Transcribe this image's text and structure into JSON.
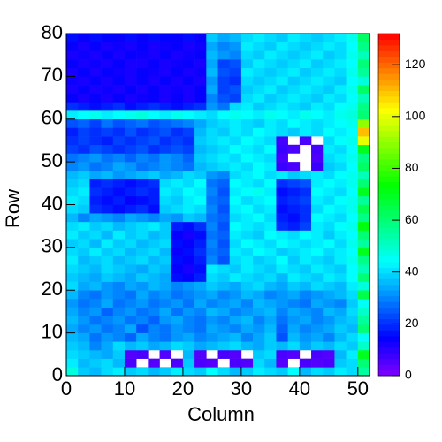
{
  "chart_data": {
    "type": "heatmap",
    "x_label": "Column",
    "y_label": "Row",
    "xlim": [
      0,
      52
    ],
    "ylim": [
      0,
      80
    ],
    "zlim": [
      0,
      132
    ],
    "xticks": [
      0,
      10,
      20,
      30,
      40,
      50
    ],
    "yticks": [
      0,
      10,
      20,
      30,
      40,
      50,
      60,
      70,
      80
    ],
    "zticks": [
      0,
      20,
      40,
      60,
      80,
      100,
      120
    ],
    "xbins": [
      0,
      2,
      4,
      6,
      8,
      10,
      12,
      14,
      16,
      18,
      20,
      22,
      24,
      26,
      28,
      30,
      32,
      34,
      36,
      38,
      40,
      42,
      44,
      46,
      48,
      50,
      52
    ],
    "ybins": [
      0,
      2,
      4,
      6,
      8,
      10,
      12,
      14,
      16,
      18,
      20,
      22,
      24,
      26,
      28,
      30,
      32,
      34,
      36,
      38,
      40,
      42,
      44,
      46,
      48,
      50,
      52,
      54,
      56,
      58,
      60,
      62,
      64,
      66,
      68,
      70,
      72,
      74,
      76,
      78,
      80
    ],
    "values": [
      [
        48,
        38,
        36,
        40,
        42,
        38,
        40,
        36,
        38,
        42,
        40,
        38,
        44,
        40,
        36,
        38,
        42,
        40,
        38,
        44,
        36,
        40,
        38,
        42,
        40,
        55
      ],
      [
        42,
        36,
        38,
        40,
        36,
        6,
        null,
        5,
        null,
        6,
        38,
        6,
        5,
        null,
        6,
        5,
        40,
        36,
        5,
        null,
        6,
        5,
        6,
        38,
        40,
        60
      ],
      [
        40,
        38,
        36,
        34,
        38,
        5,
        6,
        null,
        5,
        null,
        36,
        5,
        null,
        6,
        5,
        null,
        38,
        40,
        6,
        5,
        null,
        6,
        5,
        36,
        42,
        70
      ],
      [
        38,
        36,
        30,
        34,
        40,
        36,
        38,
        34,
        36,
        40,
        38,
        34,
        36,
        38,
        40,
        36,
        34,
        38,
        36,
        40,
        34,
        38,
        36,
        40,
        38,
        50
      ],
      [
        36,
        34,
        28,
        32,
        30,
        26,
        34,
        30,
        28,
        32,
        34,
        30,
        32,
        34,
        36,
        30,
        34,
        38,
        24,
        36,
        32,
        34,
        30,
        36,
        40,
        45
      ],
      [
        34,
        30,
        32,
        28,
        30,
        34,
        24,
        30,
        28,
        32,
        30,
        28,
        34,
        32,
        30,
        34,
        32,
        36,
        26,
        34,
        30,
        32,
        34,
        38,
        36,
        60
      ],
      [
        36,
        32,
        28,
        30,
        32,
        28,
        30,
        26,
        32,
        34,
        30,
        28,
        32,
        30,
        34,
        36,
        30,
        34,
        28,
        32,
        34,
        30,
        32,
        36,
        38,
        55
      ],
      [
        34,
        30,
        32,
        26,
        30,
        32,
        28,
        30,
        34,
        28,
        32,
        30,
        36,
        34,
        30,
        32,
        34,
        36,
        30,
        34,
        32,
        30,
        36,
        34,
        40,
        50
      ],
      [
        32,
        28,
        30,
        34,
        28,
        30,
        32,
        28,
        30,
        32,
        28,
        34,
        30,
        32,
        34,
        30,
        36,
        34,
        32,
        30,
        28,
        34,
        32,
        30,
        38,
        45
      ],
      [
        36,
        30,
        28,
        32,
        30,
        28,
        34,
        30,
        32,
        28,
        30,
        32,
        34,
        30,
        32,
        36,
        34,
        30,
        32,
        34,
        30,
        32,
        34,
        36,
        40,
        65
      ],
      [
        40,
        34,
        36,
        32,
        30,
        34,
        32,
        36,
        34,
        30,
        32,
        34,
        38,
        36,
        34,
        38,
        40,
        36,
        34,
        38,
        36,
        40,
        38,
        36,
        42,
        48
      ],
      [
        38,
        36,
        34,
        38,
        36,
        34,
        38,
        36,
        34,
        16,
        14,
        18,
        40,
        38,
        42,
        40,
        38,
        40,
        36,
        42,
        40,
        38,
        42,
        40,
        44,
        60
      ],
      [
        40,
        38,
        36,
        40,
        38,
        36,
        34,
        38,
        36,
        14,
        12,
        16,
        42,
        40,
        38,
        42,
        40,
        38,
        42,
        40,
        38,
        42,
        40,
        38,
        44,
        52
      ],
      [
        42,
        36,
        38,
        40,
        36,
        38,
        40,
        36,
        38,
        16,
        14,
        18,
        30,
        24,
        40,
        42,
        38,
        40,
        44,
        38,
        42,
        40,
        38,
        42,
        46,
        58
      ],
      [
        40,
        38,
        42,
        38,
        40,
        36,
        38,
        40,
        36,
        14,
        16,
        20,
        28,
        26,
        42,
        40,
        44,
        42,
        38,
        40,
        42,
        44,
        40,
        42,
        44,
        70
      ],
      [
        38,
        40,
        36,
        42,
        38,
        40,
        36,
        38,
        40,
        16,
        14,
        18,
        30,
        24,
        40,
        44,
        42,
        40,
        44,
        42,
        40,
        42,
        44,
        40,
        46,
        55
      ],
      [
        42,
        38,
        40,
        36,
        42,
        38,
        40,
        36,
        38,
        14,
        12,
        16,
        28,
        26,
        42,
        40,
        38,
        44,
        42,
        40,
        44,
        42,
        38,
        42,
        44,
        60
      ],
      [
        40,
        42,
        38,
        40,
        36,
        38,
        40,
        42,
        38,
        18,
        16,
        20,
        30,
        24,
        44,
        42,
        40,
        42,
        20,
        18,
        22,
        42,
        40,
        44,
        46,
        72
      ],
      [
        36,
        30,
        34,
        32,
        30,
        34,
        32,
        30,
        34,
        32,
        38,
        36,
        28,
        26,
        40,
        42,
        44,
        40,
        18,
        16,
        20,
        44,
        42,
        40,
        44,
        58
      ],
      [
        40,
        38,
        20,
        18,
        16,
        18,
        20,
        16,
        38,
        40,
        42,
        40,
        30,
        24,
        42,
        44,
        40,
        42,
        16,
        18,
        20,
        40,
        44,
        42,
        46,
        64
      ],
      [
        42,
        40,
        18,
        16,
        18,
        14,
        16,
        18,
        40,
        38,
        42,
        44,
        28,
        26,
        44,
        40,
        42,
        44,
        18,
        20,
        22,
        42,
        40,
        44,
        46,
        56
      ],
      [
        40,
        42,
        20,
        18,
        16,
        18,
        20,
        18,
        42,
        40,
        44,
        42,
        30,
        24,
        42,
        44,
        46,
        42,
        16,
        18,
        20,
        44,
        42,
        40,
        44,
        70
      ],
      [
        38,
        40,
        18,
        20,
        18,
        16,
        18,
        20,
        40,
        42,
        40,
        44,
        28,
        26,
        44,
        42,
        40,
        44,
        20,
        22,
        24,
        42,
        44,
        42,
        46,
        60
      ],
      [
        36,
        38,
        34,
        36,
        32,
        34,
        36,
        38,
        34,
        36,
        40,
        38,
        32,
        30,
        40,
        42,
        44,
        40,
        42,
        38,
        40,
        42,
        40,
        44,
        46,
        52
      ],
      [
        30,
        32,
        28,
        30,
        34,
        32,
        28,
        30,
        32,
        30,
        28,
        36,
        38,
        40,
        42,
        40,
        44,
        42,
        8,
        6,
        null,
        8,
        38,
        40,
        44,
        62
      ],
      [
        28,
        30,
        32,
        28,
        30,
        26,
        30,
        28,
        32,
        30,
        26,
        38,
        40,
        42,
        40,
        44,
        42,
        40,
        6,
        null,
        null,
        6,
        40,
        42,
        46,
        58
      ],
      [
        22,
        20,
        24,
        22,
        20,
        22,
        24,
        20,
        22,
        24,
        22,
        36,
        38,
        40,
        44,
        42,
        40,
        44,
        8,
        6,
        null,
        7,
        42,
        40,
        44,
        70
      ],
      [
        20,
        22,
        20,
        18,
        22,
        20,
        22,
        24,
        20,
        22,
        20,
        38,
        40,
        42,
        40,
        44,
        42,
        40,
        7,
        null,
        6,
        null,
        40,
        44,
        46,
        100
      ],
      [
        18,
        22,
        20,
        22,
        20,
        24,
        20,
        22,
        24,
        20,
        22,
        36,
        40,
        38,
        42,
        40,
        44,
        42,
        40,
        38,
        42,
        40,
        44,
        42,
        44,
        110
      ],
      [
        24,
        26,
        22,
        28,
        24,
        26,
        28,
        24,
        26,
        28,
        30,
        34,
        38,
        40,
        42,
        40,
        38,
        42,
        40,
        44,
        42,
        40,
        42,
        44,
        46,
        90
      ],
      [
        42,
        44,
        46,
        42,
        44,
        46,
        48,
        44,
        42,
        46,
        44,
        42,
        40,
        44,
        46,
        44,
        42,
        46,
        44,
        42,
        46,
        44,
        42,
        46,
        48,
        60
      ],
      [
        20,
        18,
        16,
        18,
        20,
        16,
        18,
        20,
        18,
        16,
        18,
        20,
        32,
        28,
        40,
        42,
        38,
        40,
        42,
        40,
        38,
        42,
        40,
        44,
        46,
        58
      ],
      [
        14,
        12,
        14,
        12,
        14,
        12,
        13,
        14,
        12,
        14,
        12,
        14,
        30,
        24,
        22,
        40,
        42,
        38,
        40,
        42,
        40,
        38,
        42,
        40,
        44,
        52
      ],
      [
        12,
        14,
        12,
        13,
        12,
        14,
        12,
        14,
        12,
        13,
        12,
        14,
        34,
        22,
        24,
        38,
        40,
        42,
        38,
        40,
        42,
        40,
        38,
        42,
        46,
        62
      ],
      [
        13,
        12,
        14,
        12,
        14,
        12,
        14,
        12,
        14,
        12,
        14,
        12,
        32,
        22,
        20,
        40,
        38,
        40,
        42,
        38,
        40,
        42,
        40,
        38,
        44,
        48
      ],
      [
        12,
        14,
        12,
        14,
        13,
        12,
        14,
        13,
        12,
        14,
        12,
        13,
        36,
        24,
        22,
        42,
        40,
        38,
        40,
        42,
        38,
        40,
        42,
        40,
        46,
        56
      ],
      [
        14,
        12,
        13,
        12,
        14,
        12,
        12,
        14,
        12,
        13,
        14,
        12,
        34,
        22,
        24,
        38,
        42,
        40,
        38,
        40,
        42,
        38,
        40,
        42,
        44,
        60
      ],
      [
        12,
        13,
        12,
        14,
        12,
        14,
        13,
        12,
        14,
        12,
        13,
        14,
        36,
        32,
        30,
        40,
        38,
        42,
        40,
        38,
        40,
        42,
        38,
        40,
        46,
        52
      ],
      [
        14,
        12,
        14,
        12,
        13,
        12,
        14,
        12,
        13,
        14,
        12,
        13,
        34,
        30,
        32,
        42,
        40,
        38,
        42,
        40,
        38,
        40,
        42,
        40,
        44,
        58
      ],
      [
        16,
        14,
        16,
        15,
        14,
        16,
        14,
        16,
        15,
        14,
        16,
        14,
        38,
        34,
        36,
        40,
        42,
        40,
        38,
        42,
        40,
        38,
        40,
        42,
        46,
        62
      ]
    ]
  }
}
